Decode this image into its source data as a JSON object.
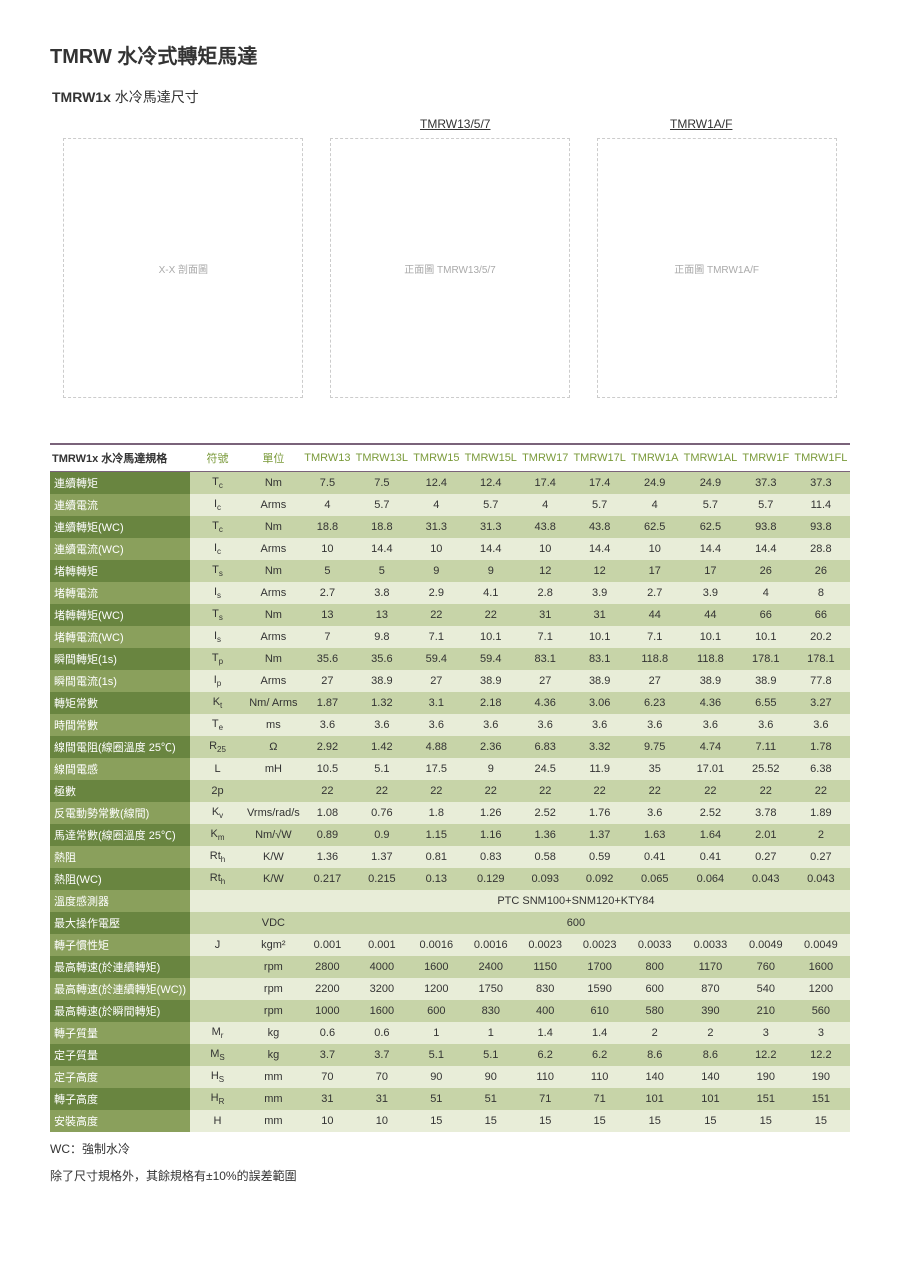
{
  "title": {
    "brand": "TMRW",
    "rest": " 水冷式轉矩馬達"
  },
  "subtitle": {
    "code": "TMRW1x",
    "desc": " 水冷馬達尺寸"
  },
  "diagram": {
    "label1": "TMRW13/5/7",
    "label2": "TMRW1A/F",
    "placeholder1": "X-X 剖面圖",
    "placeholder2": "正面圖 TMRW13/5/7",
    "placeholder3": "正面圖 TMRW1A/F"
  },
  "spec_header": {
    "heading": "TMRW1x",
    "sub": " 水冷馬達規格"
  },
  "columns": [
    "符號",
    "單位",
    "TMRW13",
    "TMRW13L",
    "TMRW15",
    "TMRW15L",
    "TMRW17",
    "TMRW17L",
    "TMRW1A",
    "TMRW1AL",
    "TMRW1F",
    "TMRW1FL"
  ],
  "rows": [
    {
      "label": "連續轉矩",
      "sym": "Tc",
      "unit": "Nm",
      "v": [
        "7.5",
        "7.5",
        "12.4",
        "12.4",
        "17.4",
        "17.4",
        "24.9",
        "24.9",
        "37.3",
        "37.3"
      ]
    },
    {
      "label": "連續電流",
      "sym": "Ic",
      "unit": "Arms",
      "v": [
        "4",
        "5.7",
        "4",
        "5.7",
        "4",
        "5.7",
        "4",
        "5.7",
        "5.7",
        "11.4"
      ]
    },
    {
      "label": "連續轉矩(WC)",
      "sym": "Tc",
      "unit": "Nm",
      "v": [
        "18.8",
        "18.8",
        "31.3",
        "31.3",
        "43.8",
        "43.8",
        "62.5",
        "62.5",
        "93.8",
        "93.8"
      ]
    },
    {
      "label": "連續電流(WC)",
      "sym": "Ic",
      "unit": "Arms",
      "v": [
        "10",
        "14.4",
        "10",
        "14.4",
        "10",
        "14.4",
        "10",
        "14.4",
        "14.4",
        "28.8"
      ]
    },
    {
      "label": "堵轉轉矩",
      "sym": "Ts",
      "unit": "Nm",
      "v": [
        "5",
        "5",
        "9",
        "9",
        "12",
        "12",
        "17",
        "17",
        "26",
        "26"
      ]
    },
    {
      "label": "堵轉電流",
      "sym": "Is",
      "unit": "Arms",
      "v": [
        "2.7",
        "3.8",
        "2.9",
        "4.1",
        "2.8",
        "3.9",
        "2.7",
        "3.9",
        "4",
        "8"
      ]
    },
    {
      "label": "堵轉轉矩(WC)",
      "sym": "Ts",
      "unit": "Nm",
      "v": [
        "13",
        "13",
        "22",
        "22",
        "31",
        "31",
        "44",
        "44",
        "66",
        "66"
      ]
    },
    {
      "label": "堵轉電流(WC)",
      "sym": "Is",
      "unit": "Arms",
      "v": [
        "7",
        "9.8",
        "7.1",
        "10.1",
        "7.1",
        "10.1",
        "7.1",
        "10.1",
        "10.1",
        "20.2"
      ]
    },
    {
      "label": "瞬間轉矩(1s)",
      "sym": "Tp",
      "unit": "Nm",
      "v": [
        "35.6",
        "35.6",
        "59.4",
        "59.4",
        "83.1",
        "83.1",
        "118.8",
        "118.8",
        "178.1",
        "178.1"
      ]
    },
    {
      "label": "瞬間電流(1s)",
      "sym": "Ip",
      "unit": "Arms",
      "v": [
        "27",
        "38.9",
        "27",
        "38.9",
        "27",
        "38.9",
        "27",
        "38.9",
        "38.9",
        "77.8"
      ]
    },
    {
      "label": "轉矩常數",
      "sym": "Kt",
      "unit": "Nm/ Arms",
      "v": [
        "1.87",
        "1.32",
        "3.1",
        "2.18",
        "4.36",
        "3.06",
        "6.23",
        "4.36",
        "6.55",
        "3.27"
      ]
    },
    {
      "label": "時間常數",
      "sym": "Te",
      "unit": "ms",
      "v": [
        "3.6",
        "3.6",
        "3.6",
        "3.6",
        "3.6",
        "3.6",
        "3.6",
        "3.6",
        "3.6",
        "3.6"
      ]
    },
    {
      "label": "線間電阻(線圈溫度 25℃)",
      "sym": "R25",
      "unit": "Ω",
      "v": [
        "2.92",
        "1.42",
        "4.88",
        "2.36",
        "6.83",
        "3.32",
        "9.75",
        "4.74",
        "7.11",
        "1.78"
      ]
    },
    {
      "label": "線間電感",
      "sym": "L",
      "unit": "mH",
      "v": [
        "10.5",
        "5.1",
        "17.5",
        "9",
        "24.5",
        "11.9",
        "35",
        "17.01",
        "25.52",
        "6.38"
      ]
    },
    {
      "label": "極數",
      "sym": "2p",
      "unit": "",
      "v": [
        "22",
        "22",
        "22",
        "22",
        "22",
        "22",
        "22",
        "22",
        "22",
        "22"
      ]
    },
    {
      "label": "反電動勢常數(線間)",
      "sym": "Kv",
      "unit": "Vrms/rad/s",
      "v": [
        "1.08",
        "0.76",
        "1.8",
        "1.26",
        "2.52",
        "1.76",
        "3.6",
        "2.52",
        "3.78",
        "1.89"
      ]
    },
    {
      "label": "馬達常數(線圈溫度 25℃)",
      "sym": "Km",
      "unit": "Nm/√W",
      "v": [
        "0.89",
        "0.9",
        "1.15",
        "1.16",
        "1.36",
        "1.37",
        "1.63",
        "1.64",
        "2.01",
        "2"
      ]
    },
    {
      "label": "熱阻",
      "sym": "Rth",
      "unit": "K/W",
      "v": [
        "1.36",
        "1.37",
        "0.81",
        "0.83",
        "0.58",
        "0.59",
        "0.41",
        "0.41",
        "0.27",
        "0.27"
      ]
    },
    {
      "label": "熱阻(WC)",
      "sym": "Rth",
      "unit": "K/W",
      "v": [
        "0.217",
        "0.215",
        "0.13",
        "0.129",
        "0.093",
        "0.092",
        "0.065",
        "0.064",
        "0.043",
        "0.043"
      ]
    }
  ],
  "merged_rows": [
    {
      "label": "溫度感測器",
      "sym": "",
      "unit": "",
      "text": "PTC SNM100+SNM120+KTY84"
    },
    {
      "label": "最大操作電壓",
      "sym": "",
      "unit": "VDC",
      "text": "600"
    }
  ],
  "rows2": [
    {
      "label": "轉子慣性矩",
      "sym": "J",
      "unit": "kgm²",
      "v": [
        "0.001",
        "0.001",
        "0.0016",
        "0.0016",
        "0.0023",
        "0.0023",
        "0.0033",
        "0.0033",
        "0.0049",
        "0.0049"
      ]
    },
    {
      "label": "最高轉速(於連續轉矩)",
      "sym": "",
      "unit": "rpm",
      "v": [
        "2800",
        "4000",
        "1600",
        "2400",
        "1150",
        "1700",
        "800",
        "1170",
        "760",
        "1600"
      ]
    },
    {
      "label": "最高轉速(於連續轉矩(WC))",
      "sym": "",
      "unit": "rpm",
      "v": [
        "2200",
        "3200",
        "1200",
        "1750",
        "830",
        "1590",
        "600",
        "870",
        "540",
        "1200"
      ]
    },
    {
      "label": "最高轉速(於瞬間轉矩)",
      "sym": "",
      "unit": "rpm",
      "v": [
        "1000",
        "1600",
        "600",
        "830",
        "400",
        "610",
        "580",
        "390",
        "210",
        "560"
      ]
    },
    {
      "label": "轉子質量",
      "sym": "Mr",
      "unit": "kg",
      "v": [
        "0.6",
        "0.6",
        "1",
        "1",
        "1.4",
        "1.4",
        "2",
        "2",
        "3",
        "3"
      ]
    },
    {
      "label": "定子質量",
      "sym": "MS",
      "unit": "kg",
      "v": [
        "3.7",
        "3.7",
        "5.1",
        "5.1",
        "6.2",
        "6.2",
        "8.6",
        "8.6",
        "12.2",
        "12.2"
      ]
    },
    {
      "label": "定子高度",
      "sym": "HS",
      "unit": "mm",
      "v": [
        "70",
        "70",
        "90",
        "90",
        "110",
        "110",
        "140",
        "140",
        "190",
        "190"
      ]
    },
    {
      "label": "轉子高度",
      "sym": "HR",
      "unit": "mm",
      "v": [
        "31",
        "31",
        "51",
        "51",
        "71",
        "71",
        "101",
        "101",
        "151",
        "151"
      ]
    },
    {
      "label": "安裝高度",
      "sym": "H",
      "unit": "mm",
      "v": [
        "10",
        "10",
        "15",
        "15",
        "15",
        "15",
        "15",
        "15",
        "15",
        "15"
      ]
    }
  ],
  "footnote1": "WC：強制水冷",
  "footnote2": "除了尺寸規格外，其餘規格有±10%的誤差範圍"
}
